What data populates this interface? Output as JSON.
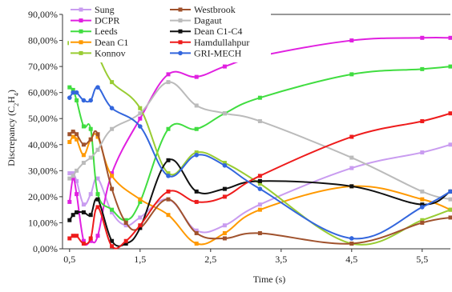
{
  "chart_data": {
    "type": "line",
    "xlabel": "Time (s)",
    "ylabel_main": "Discrepancy (C",
    "ylabel_sub1": "2",
    "ylabel_mid": "H",
    "ylabel_sub2": "4",
    "ylabel_end": ")",
    "xlim": [
      0.4,
      5.9
    ],
    "ylim": [
      0,
      90
    ],
    "x_ticks": [
      0.5,
      1.5,
      2.5,
      3.5,
      4.5,
      5.5
    ],
    "x_tick_labels": [
      "0,5",
      "1,5",
      "2,5",
      "3,5",
      "4,5",
      "5,5"
    ],
    "y_ticks": [
      0,
      10,
      20,
      30,
      40,
      50,
      60,
      70,
      80,
      90
    ],
    "y_tick_labels": [
      "0,00%",
      "10,00%",
      "20,00%",
      "30,00%",
      "40,00%",
      "50,00%",
      "60,00%",
      "70,00%",
      "80,00%",
      "90,00%"
    ],
    "grid": false,
    "legend_position": "top",
    "series": [
      {
        "name": "Sung",
        "color": "#c99cf0",
        "marker": "square",
        "points": [
          [
            0.5,
            29
          ],
          [
            0.55,
            29
          ],
          [
            0.6,
            26
          ],
          [
            0.7,
            17
          ],
          [
            0.8,
            21
          ],
          [
            0.9,
            27
          ],
          [
            1.1,
            14
          ],
          [
            1.3,
            9
          ],
          [
            1.5,
            12
          ],
          [
            1.9,
            19
          ],
          [
            2.3,
            7
          ],
          [
            2.7,
            9
          ],
          [
            3.2,
            17
          ],
          [
            4.5,
            31
          ],
          [
            5.5,
            37
          ],
          [
            5.9,
            40
          ]
        ]
      },
      {
        "name": "DCPR",
        "color": "#e020e0",
        "marker": "square",
        "points": [
          [
            0.5,
            18
          ],
          [
            0.55,
            27
          ],
          [
            0.6,
            21
          ],
          [
            0.7,
            3
          ],
          [
            0.8,
            3
          ],
          [
            0.9,
            5
          ],
          [
            1.1,
            29
          ],
          [
            1.5,
            50
          ],
          [
            1.9,
            67
          ],
          [
            2.3,
            66
          ],
          [
            2.7,
            70
          ],
          [
            3.2,
            74
          ],
          [
            4.5,
            80
          ],
          [
            5.5,
            81
          ],
          [
            5.9,
            81
          ]
        ]
      },
      {
        "name": "Leeds",
        "color": "#40dd40",
        "marker": "square",
        "points": [
          [
            0.5,
            62
          ],
          [
            0.55,
            61
          ],
          [
            0.6,
            57
          ],
          [
            0.7,
            47
          ],
          [
            0.8,
            46
          ],
          [
            0.9,
            21
          ],
          [
            1.1,
            15
          ],
          [
            1.3,
            11
          ],
          [
            1.5,
            18
          ],
          [
            1.9,
            46
          ],
          [
            2.3,
            46
          ],
          [
            2.7,
            52
          ],
          [
            3.2,
            58
          ],
          [
            4.5,
            67
          ],
          [
            5.5,
            69
          ],
          [
            5.9,
            70
          ]
        ]
      },
      {
        "name": "Dean C1",
        "color": "#ff9900",
        "marker": "square",
        "points": [
          [
            0.5,
            41
          ],
          [
            0.55,
            43
          ],
          [
            0.6,
            42
          ],
          [
            0.7,
            36
          ],
          [
            0.8,
            42
          ],
          [
            0.9,
            43
          ],
          [
            1.1,
            28
          ],
          [
            1.5,
            19
          ],
          [
            1.9,
            13
          ],
          [
            2.3,
            2
          ],
          [
            2.7,
            6
          ],
          [
            3.2,
            15
          ],
          [
            4.5,
            24
          ],
          [
            5.5,
            19
          ],
          [
            5.9,
            15
          ]
        ]
      },
      {
        "name": "Konnov",
        "color": "#99cc33",
        "marker": "square",
        "points": [
          [
            0.5,
            79
          ],
          [
            0.55,
            78
          ],
          [
            0.6,
            77
          ],
          [
            0.7,
            73
          ],
          [
            0.8,
            74
          ],
          [
            0.9,
            74
          ],
          [
            1.1,
            64
          ],
          [
            1.5,
            54
          ],
          [
            1.9,
            29
          ],
          [
            2.3,
            37
          ],
          [
            2.7,
            33
          ],
          [
            3.2,
            25
          ],
          [
            4.5,
            2
          ],
          [
            5.5,
            11
          ],
          [
            5.9,
            15
          ]
        ]
      },
      {
        "name": "Westbrook",
        "color": "#a0522d",
        "marker": "square",
        "points": [
          [
            0.5,
            44
          ],
          [
            0.55,
            45
          ],
          [
            0.6,
            44
          ],
          [
            0.7,
            40
          ],
          [
            0.8,
            42
          ],
          [
            0.9,
            44
          ],
          [
            1.1,
            23
          ],
          [
            1.3,
            10
          ],
          [
            1.5,
            8
          ],
          [
            1.9,
            19
          ],
          [
            2.3,
            6
          ],
          [
            2.7,
            4
          ],
          [
            3.2,
            6
          ],
          [
            4.5,
            2
          ],
          [
            5.5,
            10
          ],
          [
            5.9,
            12
          ]
        ]
      },
      {
        "name": "Dagaut",
        "color": "#bbbbbb",
        "marker": "square",
        "points": [
          [
            0.5,
            27
          ],
          [
            0.55,
            28
          ],
          [
            0.6,
            30
          ],
          [
            0.7,
            33
          ],
          [
            0.8,
            35
          ],
          [
            0.9,
            38
          ],
          [
            1.1,
            46
          ],
          [
            1.5,
            52
          ],
          [
            1.9,
            64
          ],
          [
            2.3,
            55
          ],
          [
            2.7,
            52
          ],
          [
            3.2,
            49
          ],
          [
            4.5,
            35
          ],
          [
            5.5,
            22
          ],
          [
            5.9,
            19
          ]
        ]
      },
      {
        "name": "Dean C1-C4",
        "color": "#111111",
        "marker": "square",
        "points": [
          [
            0.5,
            11
          ],
          [
            0.55,
            13
          ],
          [
            0.6,
            14
          ],
          [
            0.7,
            14
          ],
          [
            0.8,
            13
          ],
          [
            0.9,
            19
          ],
          [
            1.1,
            3
          ],
          [
            1.3,
            2
          ],
          [
            1.5,
            8
          ],
          [
            1.9,
            34
          ],
          [
            2.3,
            22
          ],
          [
            2.7,
            23
          ],
          [
            3.2,
            26
          ],
          [
            4.5,
            24
          ],
          [
            5.5,
            17
          ],
          [
            5.9,
            22
          ]
        ]
      },
      {
        "name": "Hamdullahpur",
        "color": "#ee1c1c",
        "marker": "square",
        "points": [
          [
            0.5,
            4
          ],
          [
            0.55,
            5
          ],
          [
            0.6,
            5
          ],
          [
            0.7,
            2
          ],
          [
            0.8,
            4
          ],
          [
            0.9,
            16
          ],
          [
            1.1,
            1
          ],
          [
            1.3,
            3
          ],
          [
            1.5,
            9
          ],
          [
            1.9,
            22
          ],
          [
            2.3,
            18
          ],
          [
            2.7,
            20
          ],
          [
            3.2,
            28
          ],
          [
            4.5,
            43
          ],
          [
            5.5,
            49
          ],
          [
            5.9,
            52
          ]
        ]
      },
      {
        "name": "GRI-MECH",
        "color": "#3366dd",
        "marker": "circle",
        "points": [
          [
            0.5,
            58
          ],
          [
            0.55,
            60
          ],
          [
            0.6,
            60
          ],
          [
            0.7,
            57
          ],
          [
            0.8,
            57
          ],
          [
            0.9,
            62
          ],
          [
            1.1,
            54
          ],
          [
            1.5,
            47
          ],
          [
            1.9,
            28
          ],
          [
            2.3,
            36
          ],
          [
            2.7,
            32
          ],
          [
            3.2,
            23
          ],
          [
            4.5,
            4
          ],
          [
            5.5,
            16
          ],
          [
            5.9,
            22
          ]
        ]
      }
    ]
  }
}
